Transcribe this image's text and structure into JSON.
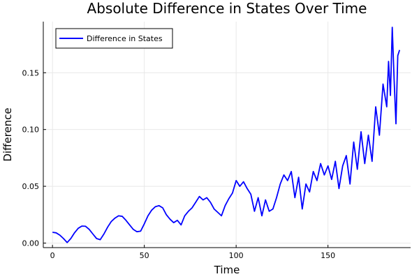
{
  "chart_data": {
    "type": "line",
    "title": "Absolute Difference in States Over Time",
    "xlabel": "Time",
    "ylabel": "Difference",
    "xlim": [
      -5,
      195
    ],
    "ylim": [
      -0.004,
      0.195
    ],
    "xticks": [
      0,
      50,
      100,
      150
    ],
    "yticks": [
      0.0,
      0.05,
      0.1,
      0.15
    ],
    "ytick_labels": [
      "0.00",
      "0.05",
      "0.10",
      "0.15"
    ],
    "grid": true,
    "legend_position": "top-left",
    "series": [
      {
        "name": "Difference in States",
        "color": "#0000ff",
        "x": [
          0,
          2,
          4,
          6,
          8,
          10,
          12,
          14,
          16,
          18,
          20,
          22,
          24,
          26,
          28,
          30,
          32,
          34,
          36,
          38,
          40,
          42,
          44,
          46,
          48,
          50,
          52,
          54,
          56,
          58,
          60,
          62,
          64,
          66,
          68,
          70,
          72,
          74,
          76,
          78,
          80,
          82,
          84,
          86,
          88,
          90,
          92,
          94,
          96,
          98,
          100,
          102,
          104,
          106,
          108,
          110,
          112,
          114,
          116,
          118,
          120,
          122,
          124,
          126,
          128,
          130,
          132,
          134,
          136,
          138,
          140,
          142,
          144,
          146,
          148,
          150,
          152,
          154,
          156,
          158,
          160,
          162,
          164,
          166,
          168,
          170,
          172,
          174,
          176,
          178,
          180,
          182,
          183,
          184,
          185,
          186,
          187,
          188,
          189
        ],
        "values": [
          0.0095,
          0.009,
          0.007,
          0.004,
          0.0005,
          0.004,
          0.009,
          0.013,
          0.015,
          0.0148,
          0.012,
          0.008,
          0.004,
          0.003,
          0.008,
          0.014,
          0.019,
          0.022,
          0.024,
          0.0235,
          0.02,
          0.016,
          0.012,
          0.01,
          0.0105,
          0.017,
          0.024,
          0.029,
          0.032,
          0.033,
          0.031,
          0.025,
          0.021,
          0.018,
          0.02,
          0.016,
          0.024,
          0.028,
          0.031,
          0.036,
          0.041,
          0.038,
          0.04,
          0.036,
          0.03,
          0.027,
          0.024,
          0.033,
          0.039,
          0.044,
          0.055,
          0.05,
          0.054,
          0.048,
          0.043,
          0.028,
          0.04,
          0.024,
          0.038,
          0.028,
          0.03,
          0.04,
          0.052,
          0.06,
          0.055,
          0.063,
          0.04,
          0.058,
          0.03,
          0.052,
          0.045,
          0.063,
          0.055,
          0.07,
          0.06,
          0.068,
          0.056,
          0.072,
          0.048,
          0.068,
          0.077,
          0.052,
          0.089,
          0.065,
          0.098,
          0.07,
          0.095,
          0.072,
          0.12,
          0.095,
          0.14,
          0.12,
          0.16,
          0.13,
          0.19,
          0.145,
          0.105,
          0.165,
          0.17
        ]
      }
    ]
  }
}
